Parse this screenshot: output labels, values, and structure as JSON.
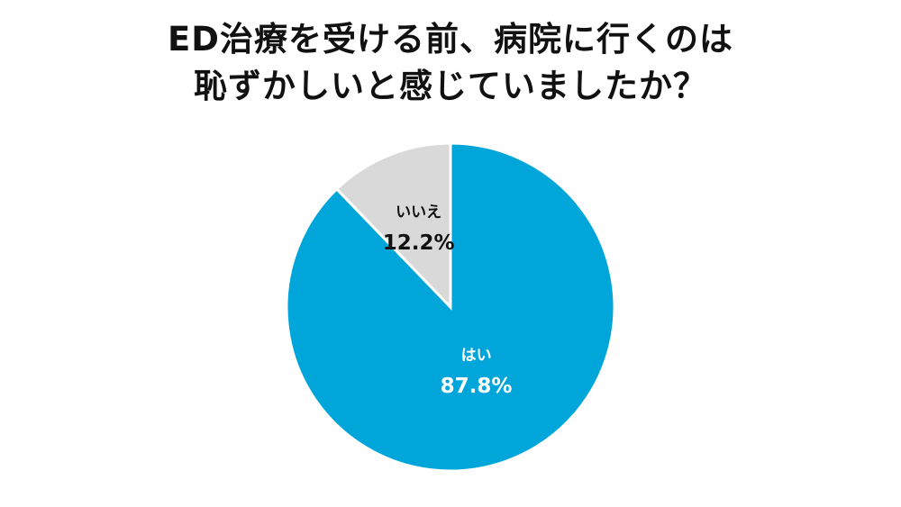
{
  "title_lines": [
    "ED治療を受ける前、病院に行くのは",
    "恥ずかしいと感じていましたか？"
  ],
  "chart_data": {
    "type": "pie",
    "title": "ED治療を受ける前、病院に行くのは恥ずかしいと感じていましたか？",
    "slices": [
      {
        "label": "はい",
        "value": 87.8,
        "value_label": "87.8%",
        "color": "#00a6d9",
        "text_color": "#ffffff"
      },
      {
        "label": "いいえ",
        "value": 12.2,
        "value_label": "12.2%",
        "color": "#d9d9d9",
        "text_color": "#111111"
      }
    ],
    "start_angle_deg": 0,
    "direction": "clockwise",
    "separator_color": "#ffffff"
  }
}
